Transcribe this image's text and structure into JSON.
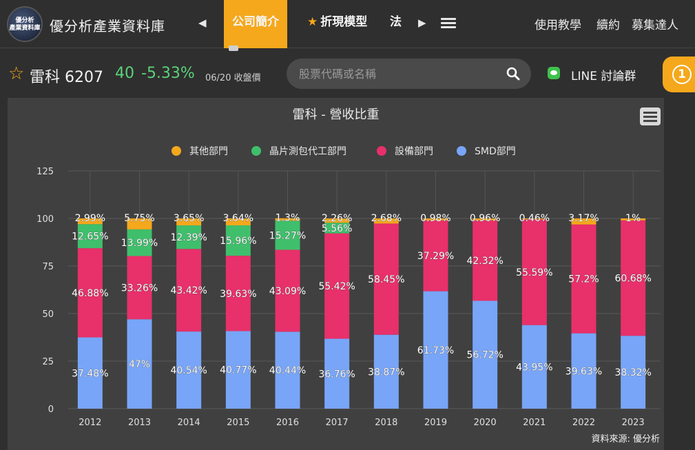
{
  "header": {
    "logo_text": "優分析\n產業資料庫",
    "site_title": "優分析產業資料庫",
    "tabs": [
      {
        "label": "公司簡介",
        "active": true
      },
      {
        "label": "折現模型",
        "active": false
      },
      {
        "label": "法",
        "active": false
      }
    ],
    "tab_star": "★",
    "right_links": [
      "使用教學",
      "續約",
      "募集達人"
    ]
  },
  "stock": {
    "name_code": "雷科 6207",
    "price": "40",
    "change": "-5.33%",
    "date_label": "06/20 收盤價"
  },
  "search": {
    "placeholder": "股票代碼或名稱"
  },
  "line_link": "LINE 討論群",
  "notification_count": "1",
  "colors": {
    "accent": "#f5a81c",
    "up_green": "#5cd17a",
    "series_other": "#f5a81c",
    "series_wafer": "#3fbf6b",
    "series_equipment": "#e8306a",
    "series_smd": "#78a5f7"
  },
  "chart_data": {
    "type": "bar",
    "stacked": true,
    "title": "雷科 - 營收比重",
    "categories": [
      "2012",
      "2013",
      "2014",
      "2015",
      "2016",
      "2017",
      "2018",
      "2019",
      "2020",
      "2021",
      "2022",
      "2023"
    ],
    "series": [
      {
        "name": "SMD部門",
        "values": [
          37.48,
          47,
          40.54,
          40.77,
          40.44,
          36.76,
          38.87,
          61.73,
          56.72,
          43.95,
          39.63,
          38.32
        ],
        "labels": [
          "37.48%",
          "47%",
          "40.54%",
          "40.77%",
          "40.44%",
          "36.76%",
          "38.87%",
          "61.73%",
          "56.72%",
          "43.95%",
          "39.63%",
          "38.32%"
        ]
      },
      {
        "name": "設備部門",
        "values": [
          46.88,
          33.26,
          43.42,
          39.63,
          43.09,
          55.42,
          58.45,
          37.29,
          42.32,
          55.59,
          57.2,
          60.68
        ],
        "labels": [
          "46.88%",
          "33.26%",
          "43.42%",
          "39.63%",
          "43.09%",
          "55.42%",
          "58.45%",
          "37.29%",
          "42.32%",
          "55.59%",
          "57.2%",
          "60.68%"
        ]
      },
      {
        "name": "晶片測包代工部門",
        "values": [
          12.65,
          13.99,
          12.39,
          15.96,
          15.27,
          5.56,
          0,
          0,
          0,
          0,
          0,
          0
        ],
        "labels": [
          "12.65%",
          "13.99%",
          "12.39%",
          "15.96%",
          "15.27%",
          "5.56%",
          "",
          "",
          "",
          "",
          "",
          ""
        ]
      },
      {
        "name": "其他部門",
        "values": [
          2.99,
          5.75,
          3.65,
          3.64,
          1.3,
          2.26,
          2.68,
          0.98,
          0.96,
          0.46,
          3.17,
          1
        ],
        "labels": [
          "2.99%",
          "5.75%",
          "3.65%",
          "3.64%",
          "1.3%",
          "2.26%",
          "2.68%",
          "0.98%",
          "0.96%",
          "0.46%",
          "3.17%",
          "1%"
        ]
      }
    ],
    "legend_order": [
      "其他部門",
      "晶片測包代工部門",
      "設備部門",
      "SMD部門"
    ],
    "y_ticks": [
      "0",
      "25",
      "50",
      "75",
      "100",
      "125"
    ],
    "ylim": [
      0,
      125
    ],
    "grid": true,
    "legend_position": "top",
    "source": "資料來源: 優分析"
  }
}
